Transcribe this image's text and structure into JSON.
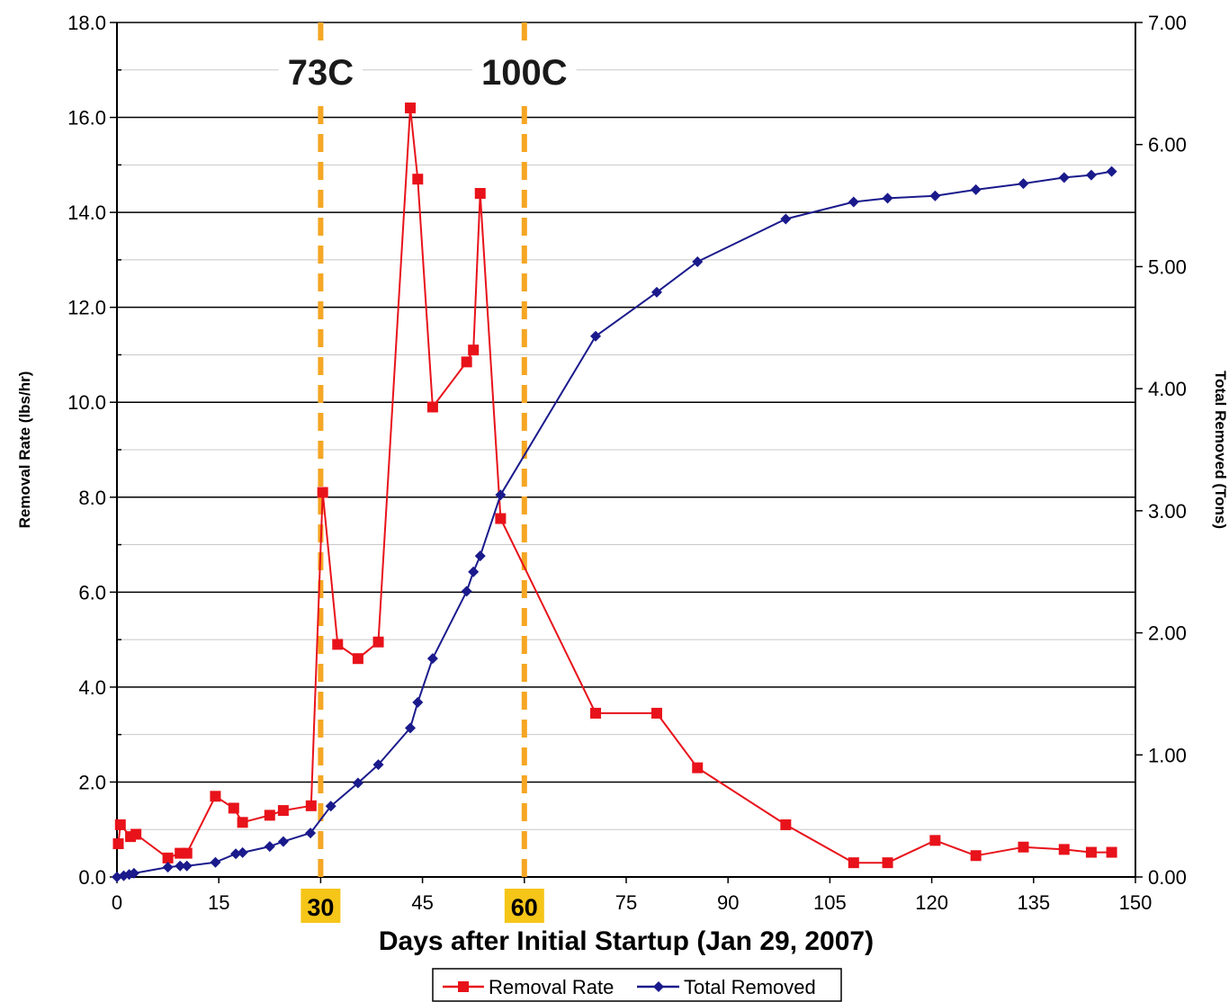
{
  "chart_data": {
    "type": "line",
    "xlabel": "Days after Initial Startup (Jan 29, 2007)",
    "ylabel": "Removal Rate (lbs/hr)",
    "y2label": "Total Removed (Tons)",
    "xlim": [
      0,
      150
    ],
    "ylim": [
      0,
      18
    ],
    "y2lim": [
      0,
      7
    ],
    "x_ticks": [
      "0",
      "15",
      "30",
      "45",
      "60",
      "75",
      "90",
      "105",
      "120",
      "135",
      "150"
    ],
    "y_ticks": [
      "0.0",
      "2.0",
      "4.0",
      "6.0",
      "8.0",
      "10.0",
      "12.0",
      "14.0",
      "16.0",
      "18.0"
    ],
    "y2_ticks": [
      "0.00",
      "1.00",
      "2.00",
      "3.00",
      "4.00",
      "5.00",
      "6.00",
      "7.00"
    ],
    "grid": true,
    "legend_position": "bottom-center",
    "series": [
      {
        "name": "Removal Rate",
        "axis": "left",
        "color": "#e8121a",
        "marker": "square",
        "x": [
          0.2,
          0.5,
          2,
          2.8,
          7.5,
          9.3,
          10.3,
          14.5,
          17.2,
          18.5,
          22.5,
          24.5,
          28.6,
          30.3,
          32.5,
          35.5,
          38.5,
          43.2,
          44.3,
          46.5,
          51.5,
          52.5,
          53.5,
          56.5,
          70.5,
          79.5,
          85.5,
          98.5,
          108.5,
          113.5,
          120.5,
          126.5,
          133.5,
          139.5,
          143.5,
          146.5
        ],
        "y": [
          0.7,
          1.1,
          0.85,
          0.9,
          0.4,
          0.5,
          0.5,
          1.7,
          1.45,
          1.15,
          1.3,
          1.4,
          1.5,
          8.1,
          4.9,
          4.6,
          4.95,
          16.2,
          14.7,
          9.9,
          10.85,
          11.1,
          14.4,
          7.55,
          3.45,
          3.45,
          2.3,
          1.1,
          0.3,
          0.3,
          0.77,
          0.45,
          0.63,
          0.58,
          0.52,
          0.52
        ]
      },
      {
        "name": "Total Removed",
        "axis": "right",
        "color": "#1a1a8c",
        "marker": "diamond",
        "x": [
          0,
          1,
          1.8,
          2.5,
          7.5,
          9.3,
          10.3,
          14.5,
          17.5,
          18.5,
          22.5,
          24.5,
          28.5,
          31.5,
          35.5,
          38.5,
          43.2,
          44.3,
          46.5,
          51.5,
          52.5,
          53.5,
          56.5,
          70.5,
          79.5,
          85.5,
          98.5,
          108.5,
          113.5,
          120.5,
          126.5,
          133.5,
          139.5,
          143.5,
          146.5
        ],
        "y": [
          0,
          0.01,
          0.02,
          0.03,
          0.08,
          0.09,
          0.09,
          0.12,
          0.19,
          0.2,
          0.25,
          0.29,
          0.36,
          0.58,
          0.77,
          0.92,
          1.22,
          1.43,
          1.79,
          2.34,
          2.5,
          2.63,
          3.13,
          4.43,
          4.79,
          5.04,
          5.39,
          5.53,
          5.56,
          5.58,
          5.63,
          5.68,
          5.73,
          5.75,
          5.78
        ]
      }
    ],
    "annotations": [
      {
        "text": "73C",
        "x": 30
      },
      {
        "text": "100C",
        "x": 60
      }
    ],
    "highlighted_x_ticks": [
      "30",
      "60"
    ],
    "colors": {
      "removal_rate": "#e8121a",
      "total_removed": "#1a1a8c",
      "guide_line": "#f5a623",
      "highlight_bg": "#f5c518"
    }
  }
}
